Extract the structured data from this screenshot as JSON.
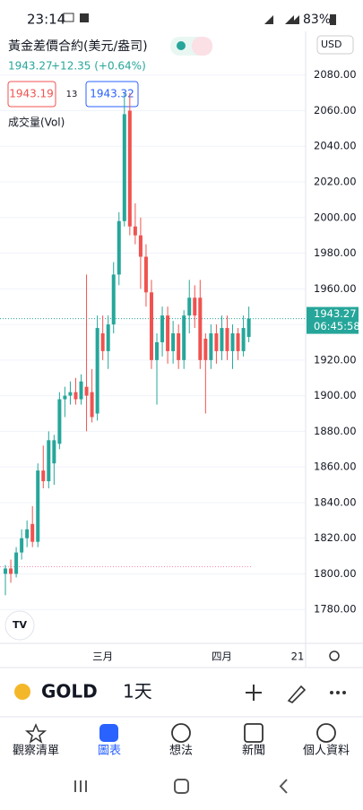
{
  "status_bar": {
    "time": "23:14",
    "battery": "83%"
  },
  "header": {
    "symbol": "黃金差價合約(美元/盎司)",
    "currency": "USD",
    "price": "1943.27",
    "change": "+12.35 (+0.64%)",
    "bid": "1943.19",
    "spread": "13",
    "ask": "1943.32",
    "indicator": "成交量(Vol)"
  },
  "chart_data": {
    "type": "candlestick",
    "categories": [
      null,
      null,
      null,
      null,
      null,
      null,
      null,
      null,
      null,
      null,
      null,
      null,
      null,
      null,
      null,
      null,
      null,
      null,
      "三月",
      null,
      null,
      null,
      null,
      null,
      null,
      null,
      null,
      null,
      null,
      null,
      null,
      null,
      null,
      null,
      null,
      null,
      null,
      null,
      null,
      null,
      "四月",
      null,
      null,
      null,
      null,
      null,
      null,
      null,
      null,
      null,
      null,
      null,
      null,
      null,
      "21",
      null
    ],
    "open": [
      1800,
      1803,
      1800,
      1812,
      1820,
      1828,
      1818,
      1858,
      1852,
      1862,
      1873,
      1898,
      1900,
      1902,
      1898,
      1905,
      1902,
      1890,
      1935,
      1925,
      1940,
      1968,
      1998,
      2060,
      1995,
      1990,
      1978,
      1958,
      1920,
      1930,
      1945,
      1925,
      1935,
      1920,
      1945,
      1955,
      1955,
      1932,
      1920,
      1935,
      1925,
      1938,
      1925,
      1935,
      1925,
      1933,
      null,
      null,
      null,
      null,
      null,
      null,
      null,
      null,
      null,
      null
    ],
    "high": [
      1805,
      1808,
      1815,
      1825,
      1830,
      1838,
      1862,
      1872,
      1880,
      1878,
      1902,
      1905,
      1908,
      1910,
      1912,
      1968,
      1915,
      1945,
      1945,
      1945,
      1975,
      2003,
      2070,
      2070,
      2008,
      2000,
      1985,
      1965,
      1935,
      1950,
      1950,
      1942,
      1940,
      1948,
      1965,
      1962,
      1965,
      1935,
      1940,
      1940,
      1945,
      1945,
      1940,
      1938,
      1945,
      1950,
      null,
      null,
      null,
      null,
      null,
      null,
      null,
      null,
      null,
      null
    ],
    "low": [
      1788,
      1795,
      1798,
      1808,
      1815,
      1815,
      1815,
      1848,
      1848,
      1850,
      1870,
      1888,
      1895,
      1895,
      1895,
      1880,
      1885,
      1886,
      1920,
      1915,
      1935,
      1962,
      1995,
      1990,
      1985,
      1960,
      1950,
      1915,
      1895,
      1922,
      1918,
      1918,
      1915,
      1915,
      1935,
      1938,
      1915,
      1890,
      1915,
      1918,
      1920,
      1920,
      1915,
      1920,
      1922,
      1930,
      null,
      null,
      null,
      null,
      null,
      null,
      null,
      null,
      null,
      null
    ],
    "close": [
      1803,
      1800,
      1812,
      1820,
      1825,
      1818,
      1858,
      1852,
      1875,
      1875,
      1898,
      1900,
      1902,
      1898,
      1908,
      1900,
      1888,
      1938,
      1925,
      1940,
      1968,
      1998,
      2058,
      1995,
      1990,
      1978,
      1958,
      1920,
      1930,
      1945,
      1925,
      1935,
      1920,
      1945,
      1955,
      1945,
      1920,
      1920,
      1935,
      1925,
      1938,
      1925,
      1935,
      1925,
      1938,
      1943.27,
      null,
      null,
      null,
      null,
      null,
      null,
      null,
      null,
      null,
      null
    ],
    "up_color": "#26a69a",
    "down_color": "#ef5350",
    "ylim": [
      1761,
      2105
    ],
    "yticks": [
      {
        "value": 1780,
        "label": "1780.00"
      },
      {
        "value": 1800,
        "label": "1800.00"
      },
      {
        "value": 1820,
        "label": "1820.00"
      },
      {
        "value": 1840,
        "label": "1840.00"
      },
      {
        "value": 1860,
        "label": "1860.00"
      },
      {
        "value": 1880,
        "label": "1880.00"
      },
      {
        "value": 1900,
        "label": "1900.00"
      },
      {
        "value": 1920,
        "label": "1920.00"
      },
      {
        "value": 1940,
        "label": "1940.00"
      },
      {
        "value": 1960,
        "label": "1960.00"
      },
      {
        "value": 1980,
        "label": "1980.00"
      },
      {
        "value": 2000,
        "label": "2000.00"
      },
      {
        "value": 2020,
        "label": "2020.00"
      },
      {
        "value": 2040,
        "label": "2040.00"
      },
      {
        "value": 2060,
        "label": "2060.00"
      },
      {
        "value": 2080,
        "label": "2080.00"
      }
    ],
    "grid": true,
    "last_price": 1943.27,
    "countdown": "06:45:58",
    "reference_line": 1804
  },
  "toolbar": {
    "symbol": "GOLD",
    "interval": "1天"
  },
  "nav": [
    "觀察清單",
    "圖表",
    "想法",
    "新聞",
    "個人資料"
  ]
}
